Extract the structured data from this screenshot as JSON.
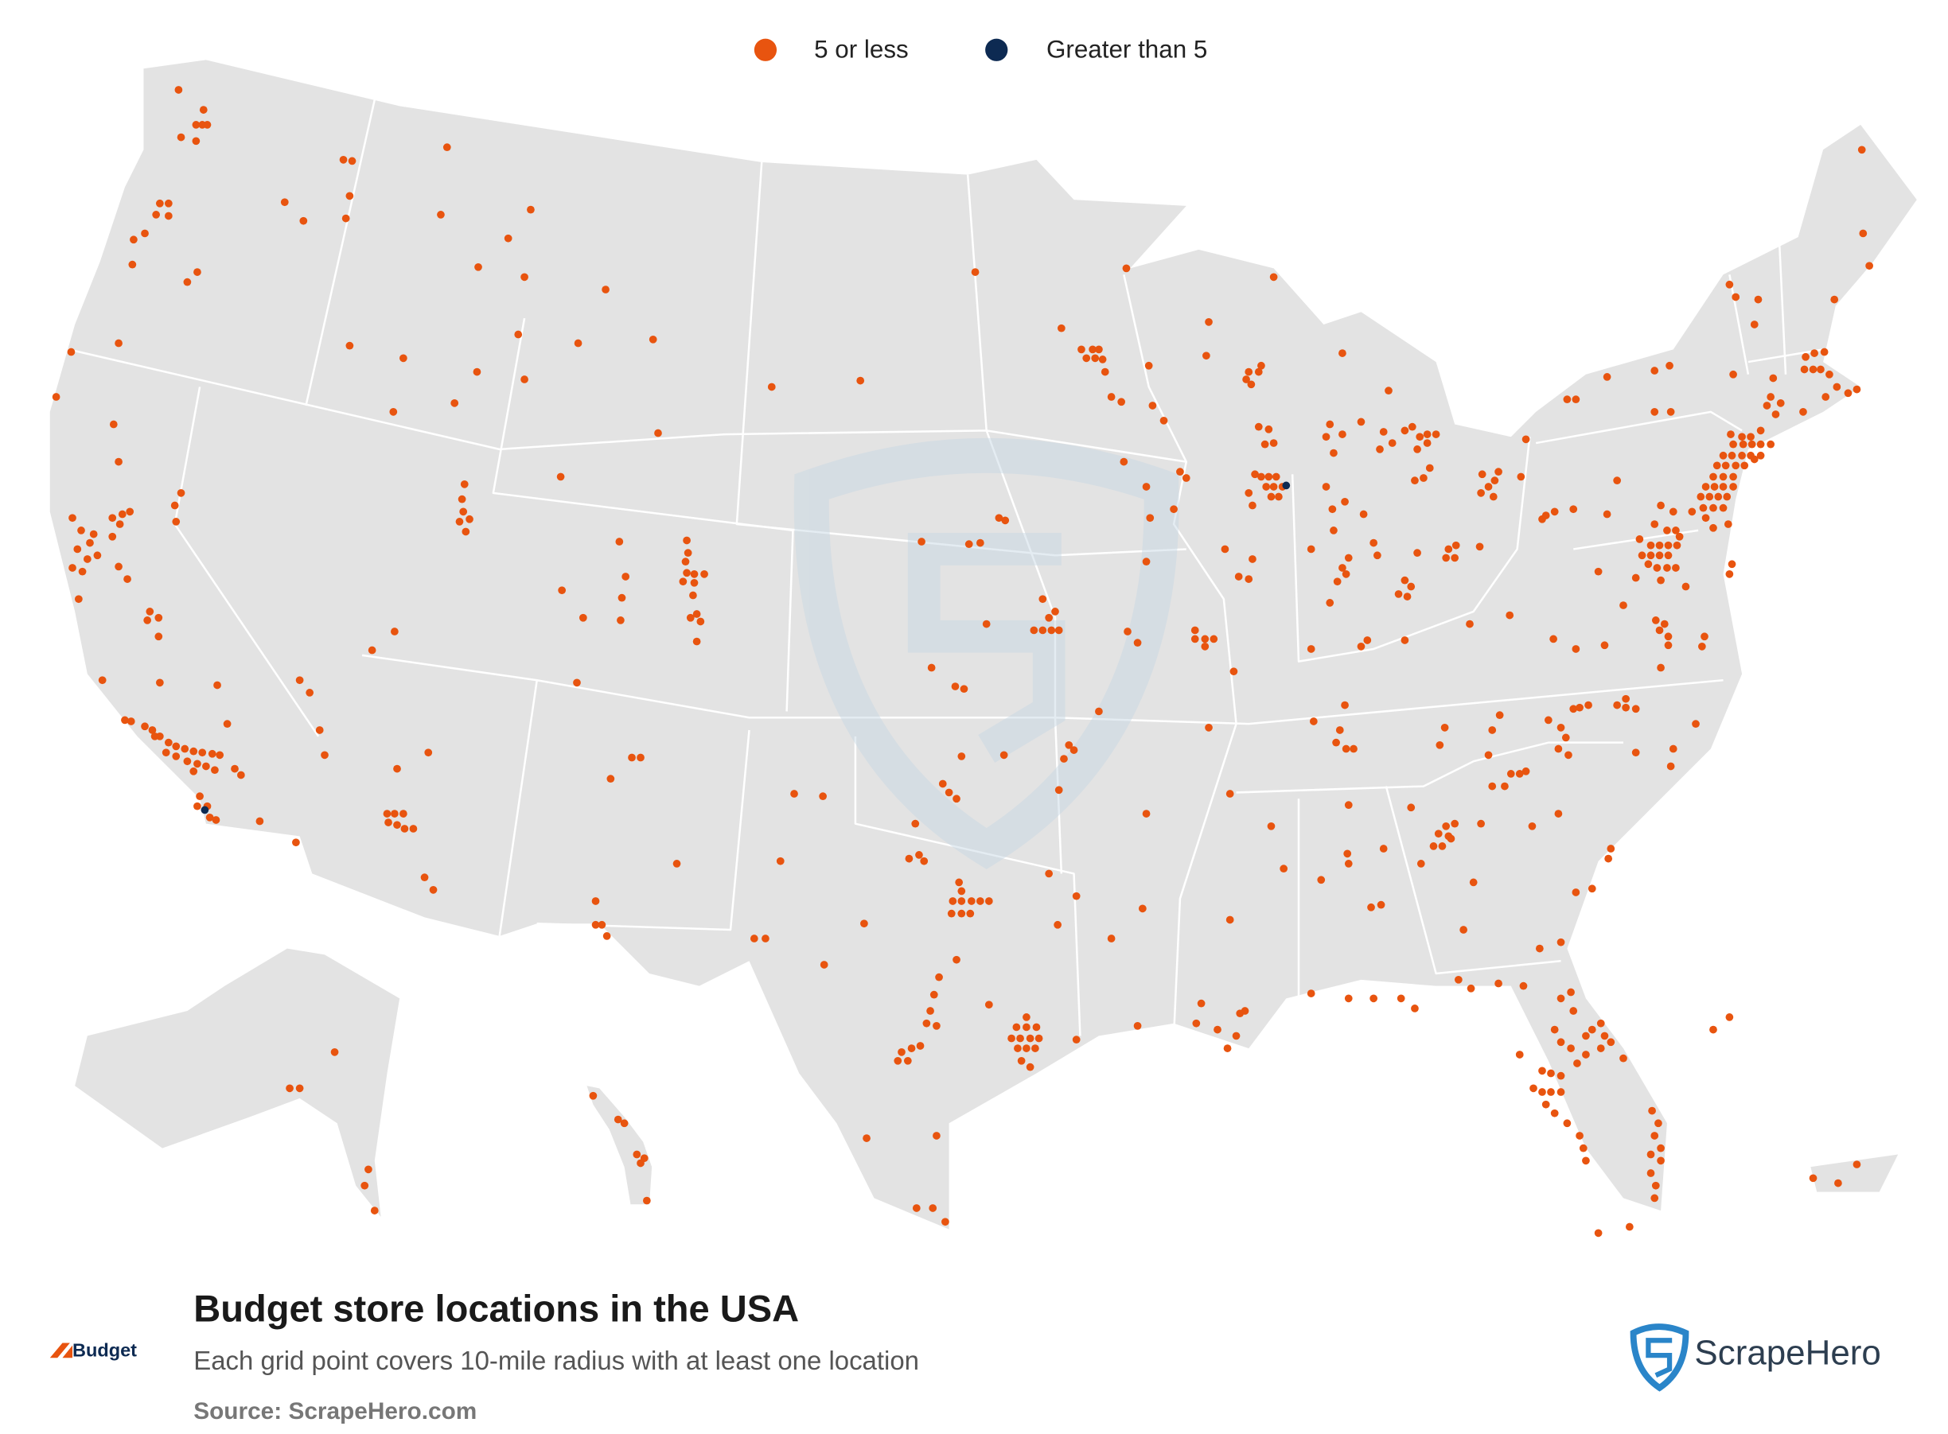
{
  "legend": {
    "items": [
      {
        "name": "5 or less",
        "color": "#e8540f"
      },
      {
        "name": "Greater than 5",
        "color": "#0d2a52"
      }
    ]
  },
  "title": "Budget store locations in the USA",
  "subtitle": "Each grid point covers 10-mile radius with at least one location",
  "source": "Source: ScrapeHero.com",
  "brand_logo": "Budget",
  "publisher_logo": "ScrapeHero"
}
